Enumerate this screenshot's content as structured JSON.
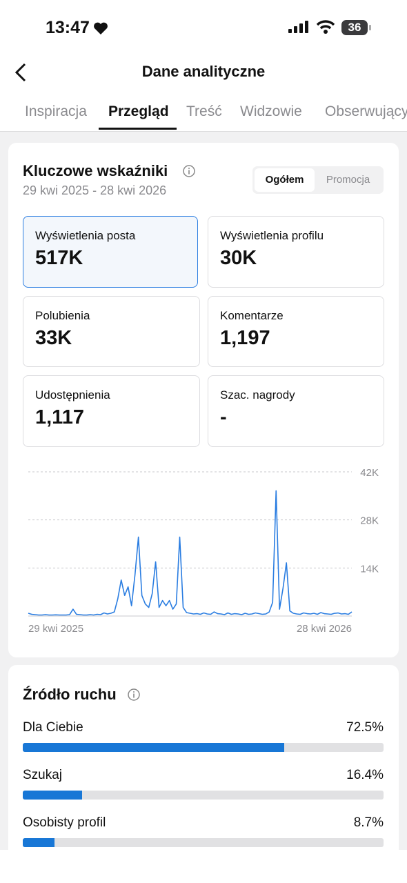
{
  "status_bar": {
    "time": "13:47",
    "battery": "36"
  },
  "header": {
    "title": "Dane analityczne"
  },
  "tabs": [
    "Inspiracja",
    "Przegląd",
    "Treść",
    "Widzowie",
    "Obserwujący"
  ],
  "key_metrics": {
    "title": "Kluczowe wskaźniki",
    "date_range": "29 kwi 2025 - 28 kwi 2026",
    "toggle": [
      "Ogółem",
      "Promocja"
    ],
    "metrics": [
      {
        "label": "Wyświetlenia posta",
        "value": "517K"
      },
      {
        "label": "Wyświetlenia profilu",
        "value": "30K"
      },
      {
        "label": "Polubienia",
        "value": "33K"
      },
      {
        "label": "Komentarze",
        "value": "1,197"
      },
      {
        "label": "Udostępnienia",
        "value": "1,117"
      },
      {
        "label": "Szac. nagrody",
        "value": "-"
      }
    ]
  },
  "traffic": {
    "title": "Źródło ruchu"
  },
  "chart_data": [
    {
      "type": "line",
      "color": "#2a7de1",
      "grid": true,
      "categories": [
        "29 kwi 2025",
        null,
        null,
        null,
        null,
        null,
        null,
        null,
        null,
        null,
        null,
        null,
        null,
        null,
        null,
        null,
        null,
        null,
        null,
        null,
        null,
        null,
        null,
        null,
        null,
        null,
        null,
        null,
        null,
        null,
        null,
        null,
        null,
        null,
        null,
        null,
        null,
        null,
        null,
        null,
        null,
        null,
        null,
        null,
        null,
        null,
        null,
        null,
        null,
        null,
        null,
        null,
        null,
        null,
        null,
        null,
        null,
        null,
        null,
        null,
        null,
        null,
        null,
        null,
        null,
        null,
        null,
        null,
        null,
        null,
        null,
        null,
        null,
        null,
        null,
        null,
        null,
        null,
        null,
        null,
        null,
        null,
        null,
        null,
        null,
        null,
        null,
        null,
        null,
        null,
        null,
        null,
        null,
        null,
        "28 kwi 2026"
      ],
      "values": [
        800,
        500,
        400,
        300,
        300,
        400,
        300,
        300,
        350,
        300,
        300,
        300,
        400,
        2000,
        500,
        400,
        300,
        300,
        400,
        300,
        500,
        400,
        900,
        600,
        800,
        1200,
        5000,
        10500,
        6000,
        8500,
        3000,
        12000,
        23000,
        6000,
        3500,
        2500,
        6500,
        15800,
        2500,
        4500,
        3000,
        4500,
        2000,
        3500,
        23000,
        2500,
        1000,
        800,
        600,
        700,
        500,
        900,
        600,
        500,
        1200,
        700,
        600,
        400,
        900,
        500,
        700,
        600,
        400,
        800,
        500,
        600,
        900,
        700,
        500,
        600,
        1200,
        4000,
        36500,
        2000,
        8000,
        15500,
        1500,
        800,
        600,
        500,
        900,
        700,
        600,
        800,
        500,
        1000,
        700,
        600,
        500,
        800,
        900,
        600,
        700,
        500,
        1200
      ],
      "ylim": [
        0,
        42000
      ],
      "yticks": [
        {
          "value": 14000,
          "label": "14K"
        },
        {
          "value": 28000,
          "label": "28K"
        },
        {
          "value": 42000,
          "label": "42K"
        }
      ]
    },
    {
      "type": "progress",
      "color": "#1877d6",
      "xlim": [
        0,
        100
      ],
      "categories": [
        "Dla Ciebie",
        "Szukaj",
        "Osobisty profil"
      ],
      "values": [
        72.5,
        16.4,
        8.7
      ],
      "value_labels": [
        "72.5%",
        "16.4%",
        "8.7%"
      ]
    }
  ]
}
